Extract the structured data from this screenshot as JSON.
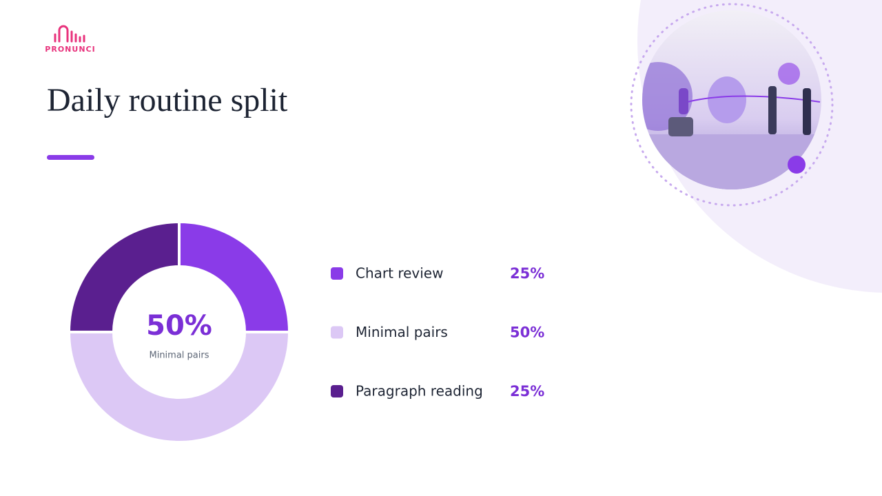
{
  "logo": "PRONUNCI",
  "chart_data": {
    "type": "donut",
    "title": "Daily routine split",
    "categories": [
      "Chart review",
      "Minimal pairs",
      "Paragraph reading"
    ],
    "values": [
      25,
      50,
      25
    ],
    "value_labels": [
      "25%",
      "50%",
      "25%"
    ],
    "colors": [
      "#8a3be8",
      "#dcc8f5",
      "#5a1f8f"
    ]
  }
}
